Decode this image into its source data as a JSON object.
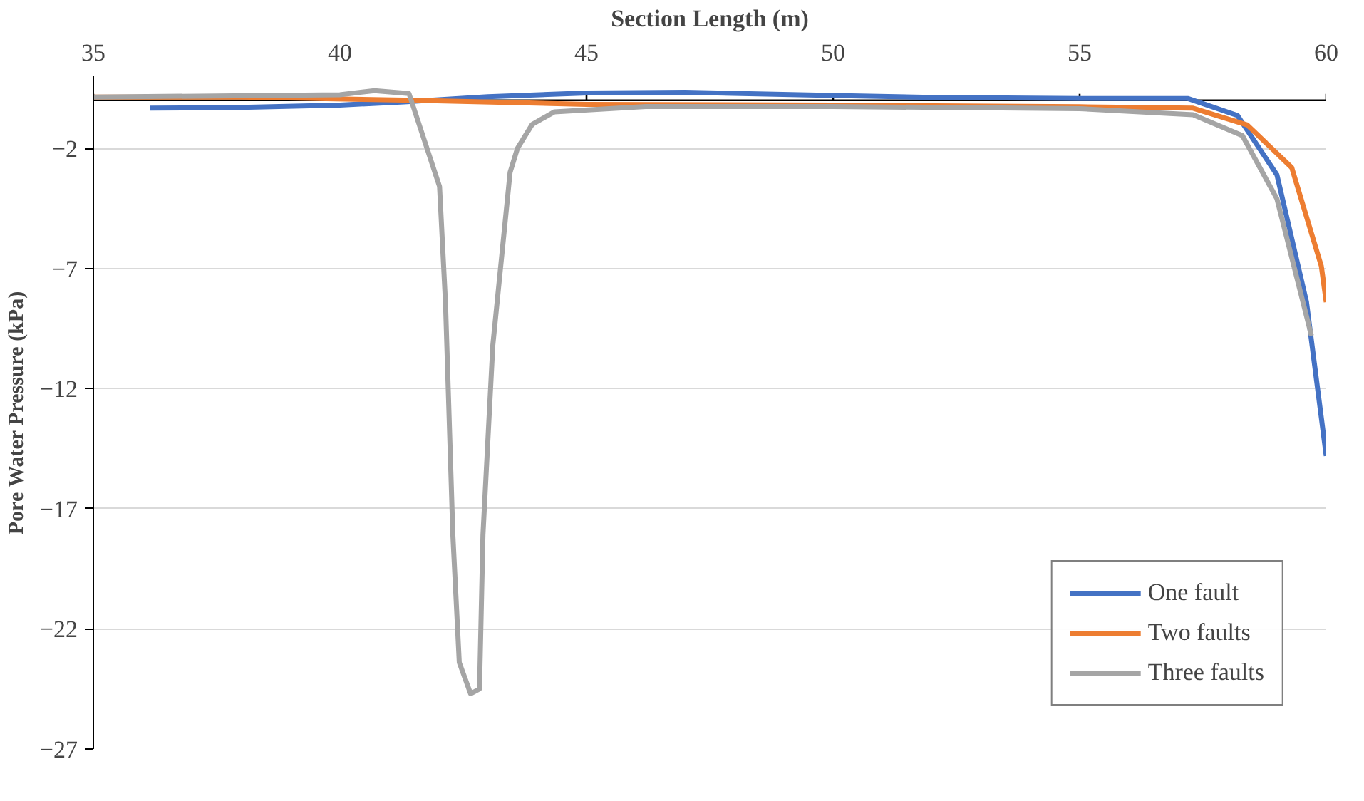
{
  "chart_data": {
    "type": "line",
    "xlabel": "Section Length (m)",
    "ylabel": "Pore Water Pressure (kPa)",
    "xlim": [
      35,
      60
    ],
    "xticks": [
      35,
      40,
      45,
      50,
      55,
      60
    ],
    "ylim": [
      -27,
      1
    ],
    "yticks": [
      -2,
      -7,
      -12,
      -17,
      -22,
      -27
    ],
    "grid": "y",
    "legend": "bottom right",
    "line_style": "solid",
    "marker": "none",
    "series": [
      {
        "name": "One fault",
        "color": "#4472c4",
        "x": [
          36.15,
          38,
          40,
          41.3,
          43,
          45,
          47,
          50,
          52,
          55,
          57.2,
          58.2,
          59.0,
          59.6,
          60
        ],
        "values": [
          -0.33,
          -0.3,
          -0.2,
          -0.07,
          0.15,
          0.3,
          0.33,
          0.2,
          0.12,
          0.07,
          0.07,
          -0.63,
          -3.1,
          -8.4,
          -14.8
        ]
      },
      {
        "name": "Two faults",
        "color": "#ed7d31",
        "x": [
          35,
          38,
          41.5,
          45,
          50,
          55,
          57.3,
          58.4,
          59.3,
          59.9,
          60
        ],
        "values": [
          0.13,
          0.13,
          0.0,
          -0.17,
          -0.2,
          -0.27,
          -0.33,
          -1.03,
          -2.8,
          -6.9,
          -8.4
        ]
      },
      {
        "name": "Three faults",
        "color": "#a5a5a5",
        "x": [
          35,
          40,
          40.7,
          41.4,
          42.02,
          42.14,
          42.29,
          42.42,
          42.65,
          42.83,
          42.9,
          43.1,
          43.45,
          43.6,
          43.9,
          44.35,
          46.2,
          50,
          55,
          57.3,
          58.3,
          59.0,
          59.7
        ],
        "values": [
          0.13,
          0.23,
          0.4,
          0.28,
          -3.59,
          -8.4,
          -18.1,
          -23.4,
          -24.7,
          -24.5,
          -18.1,
          -10.2,
          -3.0,
          -2.0,
          -1.0,
          -0.48,
          -0.26,
          -0.26,
          -0.35,
          -0.6,
          -1.47,
          -4.1,
          -9.8
        ]
      }
    ]
  }
}
